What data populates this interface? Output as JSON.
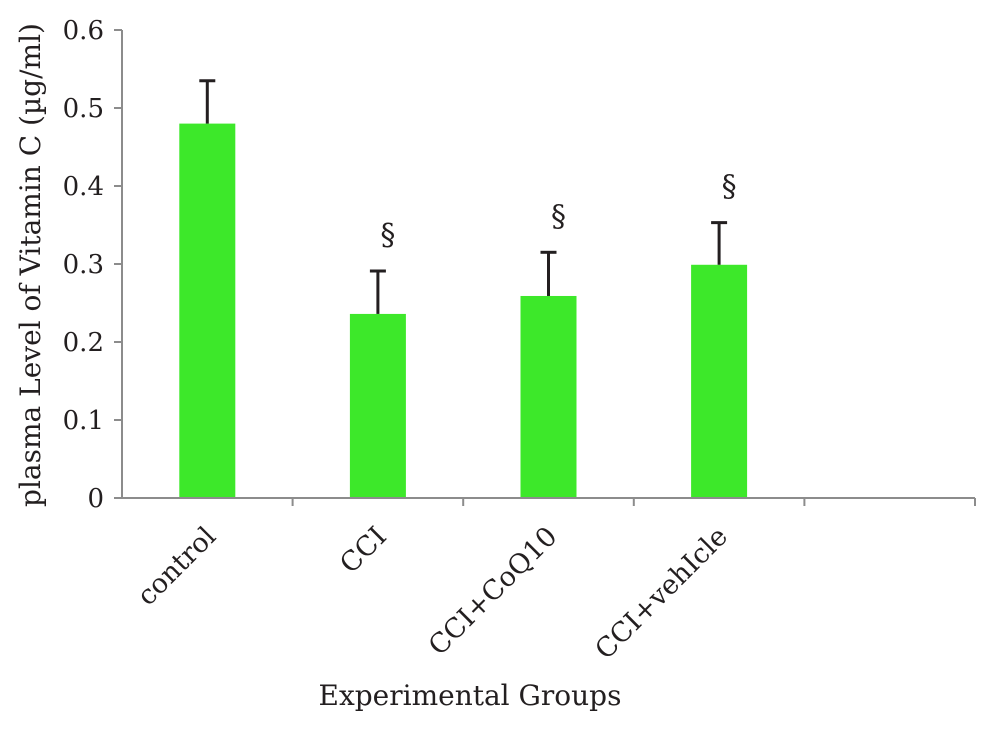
{
  "chart_data": {
    "type": "bar",
    "title": "",
    "xlabel": "Experimental Groups",
    "ylabel": "plasma Level of Vitamin C (µg/ml)",
    "categories": [
      "control",
      "CCI",
      "CCI+CoQ10",
      "CCI+vehIcle"
    ],
    "values": [
      0.48,
      0.236,
      0.259,
      0.299
    ],
    "errors": [
      0.055,
      0.055,
      0.056,
      0.054
    ],
    "annotations": [
      "",
      "§",
      "§",
      "§"
    ],
    "ylim": [
      0,
      0.6
    ],
    "yticks": [
      "0",
      "0.1",
      "0.2",
      "0.3",
      "0.4",
      "0.5",
      "0.6"
    ],
    "bar_color": "#3de82a",
    "error_color": "#231f20",
    "axis_color": "#8c8c8c",
    "grid": false,
    "legend": "none"
  }
}
